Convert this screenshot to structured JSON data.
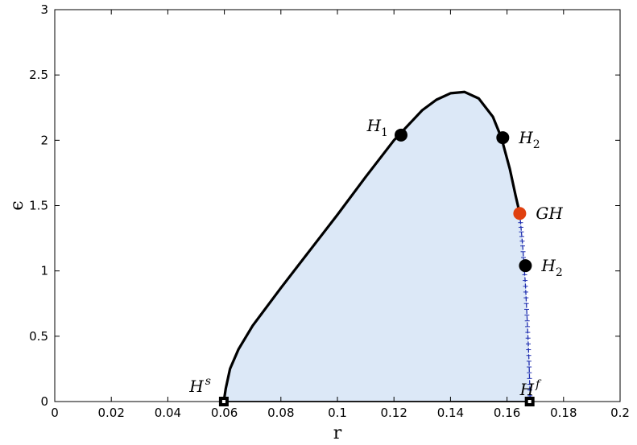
{
  "chart_data": {
    "type": "line",
    "title": "",
    "xlabel": "r",
    "ylabel": "ϵ",
    "xlim": [
      0,
      0.2
    ],
    "ylim": [
      0,
      3
    ],
    "xticks": [
      0,
      0.02,
      0.04,
      0.06,
      0.08,
      0.1,
      0.12,
      0.14,
      0.16,
      0.18,
      0.2
    ],
    "xtick_labels": [
      "0",
      "0.02",
      "0.04",
      "0.06",
      "0.08",
      "0.1",
      "0.12",
      "0.14",
      "0.16",
      "0.18",
      "0.2"
    ],
    "yticks": [
      0,
      0.5,
      1,
      1.5,
      2,
      2.5,
      3
    ],
    "ytick_labels": [
      "0",
      "0.5",
      "1",
      "1.5",
      "2",
      "2.5",
      "3"
    ],
    "grid": false,
    "region_fill": "#dce8f7",
    "series": [
      {
        "role": "hopf-curve",
        "color": "#000000",
        "x": [
          0.0598,
          0.0605,
          0.062,
          0.065,
          0.07,
          0.08,
          0.09,
          0.1,
          0.11,
          0.12,
          0.13,
          0.135,
          0.14,
          0.145,
          0.15,
          0.155,
          0.158,
          0.161,
          0.163,
          0.1645
        ],
        "y": [
          0.0,
          0.1,
          0.25,
          0.4,
          0.58,
          0.87,
          1.15,
          1.43,
          1.72,
          2.0,
          2.23,
          2.31,
          2.36,
          2.37,
          2.32,
          2.18,
          2.02,
          1.78,
          1.58,
          1.44
        ]
      },
      {
        "role": "dashed-continuation",
        "color": "#1f2fb0",
        "x": [
          0.1645,
          0.1655,
          0.1665,
          0.1672,
          0.1678,
          0.1682
        ],
        "y": [
          1.44,
          1.2,
          0.9,
          0.6,
          0.3,
          0.0
        ]
      },
      {
        "role": "baseline",
        "color": "#000000",
        "x": [
          0.0598,
          0.1682
        ],
        "y": [
          0.0,
          0.0
        ]
      }
    ],
    "points": [
      {
        "label_main": "H",
        "label_sup": "",
        "label_sub": "1",
        "x": 0.1225,
        "y": 2.04,
        "color": "#000000",
        "marker": "circle",
        "label_side": "left"
      },
      {
        "label_main": "H",
        "label_sup": "",
        "label_sub": "2",
        "x": 0.1585,
        "y": 2.02,
        "color": "#000000",
        "marker": "circle",
        "label_side": "right"
      },
      {
        "label_main": "GH",
        "label_sup": "",
        "label_sub": "",
        "x": 0.1645,
        "y": 1.44,
        "color": "#e0400f",
        "marker": "circle",
        "label_side": "right"
      },
      {
        "label_main": "H",
        "label_sup": "",
        "label_sub": "2",
        "x": 0.1665,
        "y": 1.04,
        "color": "#000000",
        "marker": "circle",
        "label_side": "right"
      },
      {
        "label_main": "H",
        "label_sup": "s",
        "label_sub": "",
        "x": 0.0598,
        "y": 0.0,
        "color": "#000000",
        "marker": "square",
        "label_side": "left"
      },
      {
        "label_main": "H",
        "label_sup": "f",
        "label_sub": "",
        "x": 0.168,
        "y": 0.0,
        "color": "#000000",
        "marker": "square",
        "label_side": "right-up"
      }
    ]
  }
}
